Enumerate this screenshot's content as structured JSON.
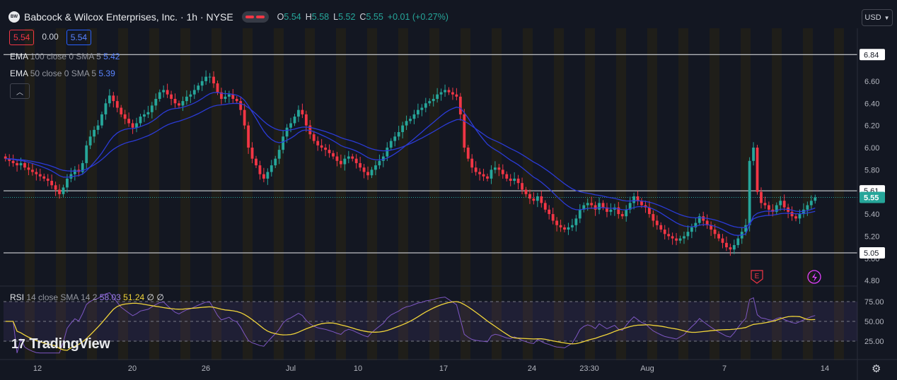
{
  "header": {
    "logo_text": "BW",
    "title": "Babcock & Wilcox Enterprises, Inc. · 1h · NYSE",
    "ohlc": [
      {
        "k": "O",
        "v": "5.54"
      },
      {
        "k": "H",
        "v": "5.58"
      },
      {
        "k": "L",
        "v": "5.52"
      },
      {
        "k": "C",
        "v": "5.55"
      },
      {
        "k": "",
        "v": "+0.01 (+0.27%)"
      }
    ]
  },
  "price_boxes": {
    "bid": "5.54",
    "spread": "0.00",
    "ask": "5.54"
  },
  "indicators": [
    {
      "name": "EMA",
      "params": "100 close 0 SMA 5",
      "value": "5.42",
      "color": "#5a85ff"
    },
    {
      "name": "EMA",
      "params": "50 close 0 SMA 5",
      "value": "5.39",
      "color": "#5a85ff"
    }
  ],
  "rsi_legend": {
    "name": "RSI",
    "params": "14 close SMA 14 2",
    "value1": "58.03",
    "value2": "51.24",
    "na1": "∅",
    "na2": "∅"
  },
  "currency_button": "USD",
  "watermark": {
    "icon": "17",
    "text": "TradingView"
  },
  "icons": {
    "collapse": "chevron-up-icon",
    "settings": "gear-icon",
    "earnings": "E",
    "dividend": "lightning-icon",
    "dropdown": "chevron-down-icon"
  },
  "colors": {
    "up": "#26a69a",
    "down": "#f23645",
    "ema": "#2b3bd6",
    "rsi": "#7e57c2",
    "rsi_ma": "#f0d43a",
    "last": "#26a69a",
    "bg": "#131722"
  },
  "chart_data": {
    "type": "candlestick",
    "price_axis": {
      "ticks": [
        "6.60",
        "6.40",
        "6.20",
        "6.00",
        "5.80",
        "5.40",
        "5.20",
        "5.00",
        "4.80"
      ],
      "range": [
        4.75,
        6.95
      ]
    },
    "time_axis": {
      "ticks": [
        "12",
        "20",
        "26",
        "Jul",
        "10",
        "17",
        "24",
        "23:30",
        "Aug",
        "7",
        "14"
      ]
    },
    "horizontal_lines": [
      {
        "label": "6.84",
        "value": 6.84
      },
      {
        "label": "5.61",
        "value": 5.61
      },
      {
        "label": "5.05",
        "value": 5.05
      }
    ],
    "last_price": {
      "label": "5.55",
      "value": 5.55
    },
    "close": [
      5.9,
      5.88,
      5.86,
      5.84,
      5.86,
      5.82,
      5.8,
      5.78,
      5.76,
      5.74,
      5.72,
      5.7,
      5.66,
      5.62,
      5.58,
      5.64,
      5.72,
      5.76,
      5.8,
      5.78,
      5.86,
      6.02,
      6.1,
      6.16,
      6.2,
      6.3,
      6.4,
      6.47,
      6.42,
      6.36,
      6.3,
      6.26,
      6.22,
      6.18,
      6.22,
      6.28,
      6.3,
      6.32,
      6.38,
      6.44,
      6.5,
      6.52,
      6.48,
      6.44,
      6.4,
      6.38,
      6.42,
      6.46,
      6.48,
      6.52,
      6.56,
      6.6,
      6.64,
      6.64,
      6.58,
      6.5,
      6.44,
      6.46,
      6.48,
      6.44,
      6.42,
      6.34,
      6.2,
      6.0,
      5.9,
      5.84,
      5.76,
      5.72,
      5.78,
      5.84,
      5.9,
      5.98,
      6.1,
      6.18,
      6.22,
      6.28,
      6.34,
      6.3,
      6.2,
      6.12,
      6.06,
      6.02,
      6.0,
      5.98,
      5.95,
      5.92,
      5.88,
      5.85,
      5.9,
      5.92,
      5.9,
      5.86,
      5.82,
      5.78,
      5.75,
      5.8,
      5.84,
      5.88,
      5.92,
      6.0,
      6.06,
      6.1,
      6.14,
      6.2,
      6.24,
      6.26,
      6.3,
      6.34,
      6.36,
      6.4,
      6.42,
      6.44,
      6.48,
      6.5,
      6.52,
      6.5,
      6.48,
      6.46,
      6.3,
      6.0,
      5.9,
      5.82,
      5.78,
      5.76,
      5.74,
      5.72,
      5.8,
      5.82,
      5.8,
      5.76,
      5.72,
      5.7,
      5.72,
      5.68,
      5.62,
      5.58,
      5.54,
      5.52,
      5.56,
      5.5,
      5.44,
      5.4,
      5.34,
      5.3,
      5.28,
      5.26,
      5.28,
      5.3,
      5.36,
      5.44,
      5.48,
      5.5,
      5.48,
      5.44,
      5.5,
      5.46,
      5.42,
      5.44,
      5.46,
      5.4,
      5.38,
      5.44,
      5.5,
      5.56,
      5.52,
      5.48,
      5.46,
      5.4,
      5.34,
      5.3,
      5.26,
      5.22,
      5.2,
      5.18,
      5.16,
      5.18,
      5.2,
      5.24,
      5.28,
      5.32,
      5.38,
      5.34,
      5.3,
      5.26,
      5.22,
      5.18,
      5.14,
      5.1,
      5.08,
      5.12,
      5.18,
      5.24,
      5.3,
      5.88,
      6.0,
      5.6,
      5.5,
      5.48,
      5.44,
      5.42,
      5.48,
      5.52,
      5.46,
      5.42,
      5.38,
      5.36,
      5.4,
      5.44,
      5.48,
      5.52,
      5.55
    ],
    "ema_series": [
      {
        "name": "EMA 50",
        "note": "short EMA overlay"
      },
      {
        "name": "EMA 100",
        "note": "long EMA overlay"
      }
    ],
    "rsi": {
      "levels": [
        75,
        50,
        25
      ],
      "tick_labels": [
        "75.00",
        "50.00",
        "25.00"
      ],
      "value": 58.03,
      "ma_value": 51.24
    }
  }
}
